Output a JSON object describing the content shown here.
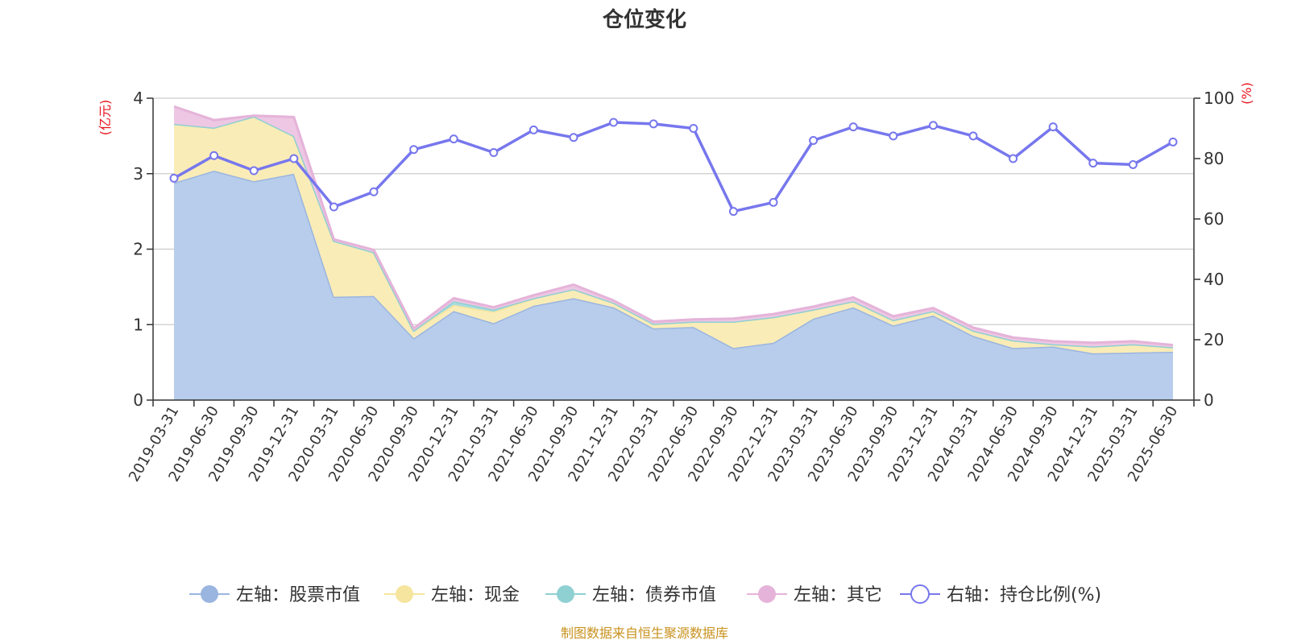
{
  "chart_data": {
    "type": "area",
    "title": "仓位变化",
    "source": "制图数据来自恒生聚源数据库",
    "left_axis": {
      "unit": "(亿元)",
      "ylim": [
        0,
        4
      ],
      "ticks": [
        0,
        1,
        2,
        3,
        4
      ]
    },
    "right_axis": {
      "unit": "(%)",
      "ylim": [
        0,
        100
      ],
      "ticks": [
        0,
        20,
        40,
        60,
        80,
        100
      ]
    },
    "grid": true,
    "legend_position": "bottom",
    "categories": [
      "2019-03-31",
      "2019-06-30",
      "2019-09-30",
      "2019-12-31",
      "2020-03-31",
      "2020-06-30",
      "2020-09-30",
      "2020-12-31",
      "2021-03-31",
      "2021-06-30",
      "2021-09-30",
      "2021-12-31",
      "2022-03-31",
      "2022-06-30",
      "2022-09-30",
      "2022-12-31",
      "2023-03-31",
      "2023-06-30",
      "2023-09-30",
      "2023-12-31",
      "2024-03-31",
      "2024-06-30",
      "2024-09-30",
      "2024-12-31",
      "2025-03-31",
      "2025-06-30"
    ],
    "series": [
      {
        "name": "左轴：股票市值",
        "axis": "left",
        "kind": "stacked-area",
        "color": "#9ab5e0",
        "fill": "#b8cdeb",
        "values": [
          2.88,
          3.04,
          2.9,
          3.0,
          1.37,
          1.38,
          0.82,
          1.18,
          1.02,
          1.25,
          1.35,
          1.23,
          0.95,
          0.97,
          0.69,
          0.76,
          1.08,
          1.23,
          0.99,
          1.12,
          0.85,
          0.69,
          0.71,
          0.62,
          0.63,
          0.64
        ]
      },
      {
        "name": "左轴：现金",
        "axis": "left",
        "kind": "stacked-area",
        "color": "#f6e59e",
        "fill": "#faecb7",
        "values": [
          0.78,
          0.57,
          0.86,
          0.5,
          0.74,
          0.58,
          0.1,
          0.08,
          0.15,
          0.1,
          0.12,
          0.06,
          0.06,
          0.07,
          0.35,
          0.34,
          0.12,
          0.08,
          0.07,
          0.06,
          0.07,
          0.1,
          0.03,
          0.09,
          0.11,
          0.06
        ]
      },
      {
        "name": "左轴：债券市值",
        "axis": "left",
        "kind": "stacked-area",
        "color": "#8fd0d2",
        "fill": "#a9dcdd",
        "values": [
          0,
          0,
          0,
          0,
          0,
          0,
          0,
          0.05,
          0.03,
          0,
          0,
          0,
          0,
          0,
          0,
          0,
          0,
          0,
          0,
          0,
          0,
          0,
          0,
          0,
          0,
          0
        ]
      },
      {
        "name": "左轴：其它",
        "axis": "left",
        "kind": "stacked-area",
        "color": "#e5b3d9",
        "fill": "#edc7e3",
        "values": [
          0.23,
          0.1,
          0.01,
          0.25,
          0.02,
          0.03,
          0.03,
          0.04,
          0.03,
          0.04,
          0.06,
          0.03,
          0.03,
          0.03,
          0.04,
          0.04,
          0.04,
          0.05,
          0.05,
          0.04,
          0.04,
          0.04,
          0.04,
          0.05,
          0.04,
          0.03
        ]
      },
      {
        "name": "右轴：持仓比例(%)",
        "axis": "right",
        "kind": "line",
        "color": "#7777ee",
        "values": [
          73.5,
          81,
          76,
          80,
          64,
          69,
          83,
          86.5,
          82,
          89.5,
          87,
          92,
          91.5,
          90,
          62.5,
          65.5,
          86,
          90.5,
          87.5,
          91,
          87.5,
          80,
          90.5,
          78.5,
          78,
          85.5
        ]
      }
    ]
  }
}
